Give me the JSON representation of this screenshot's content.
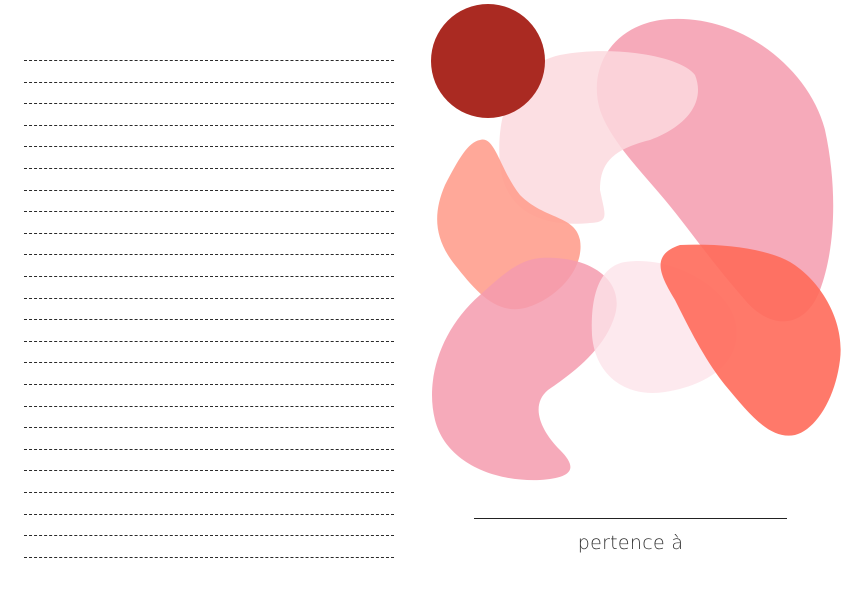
{
  "notes": {
    "ruled_line_count": 24
  },
  "artwork": {
    "colors": {
      "dark_red": "#AA2A22",
      "pale_pink": "#FCD9DE",
      "rose": "#F59BAE",
      "salmon": "#FF9E8E",
      "coral": "#FF6A5A",
      "blush": "#FDE3EA"
    }
  },
  "owner": {
    "label": "pertence à"
  }
}
